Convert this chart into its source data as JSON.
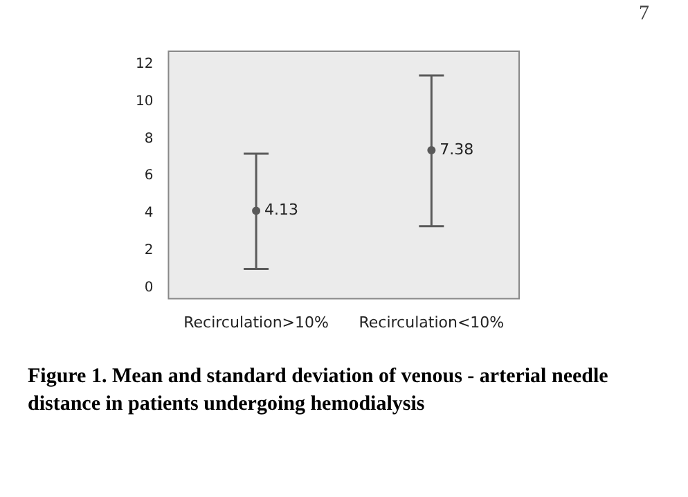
{
  "chart_data": {
    "type": "scatter",
    "categories": [
      "Recirculation>10%",
      "Recirculation<10%"
    ],
    "values": [
      4.13,
      7.38
    ],
    "errors": [
      [
        1.0,
        7.2
      ],
      [
        3.3,
        11.4
      ]
    ],
    "color": "#5a5a5a",
    "marker": "circle",
    "data_labels": true,
    "grid": false,
    "legend": false,
    "ylim": [
      -0.6,
      12.7
    ],
    "yticks": [
      0,
      2,
      4,
      6,
      8,
      10,
      12
    ],
    "annotations": [
      "7",
      "Figure 1. Mean and standard deviation of venous - arterial needle distance in patients undergoing hemodialysis"
    ]
  }
}
